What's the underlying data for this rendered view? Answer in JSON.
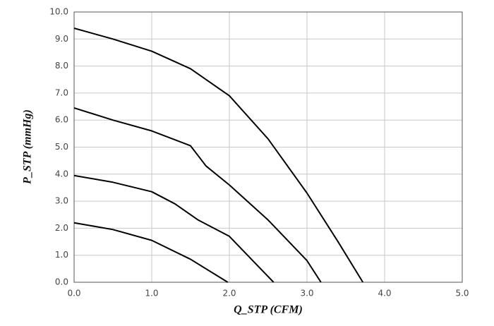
{
  "chart_data": {
    "type": "line",
    "xlabel": "Q_STP (CFM)",
    "ylabel": "P_STP (mmHg)",
    "xlim": [
      0,
      5
    ],
    "ylim": [
      0,
      10
    ],
    "xticks": [
      {
        "value": 0,
        "label": "0.0"
      },
      {
        "value": 1,
        "label": "1.0"
      },
      {
        "value": 2,
        "label": "2.0"
      },
      {
        "value": 3,
        "label": "3.0"
      },
      {
        "value": 4,
        "label": "4.0"
      },
      {
        "value": 5,
        "label": "5.0"
      }
    ],
    "yticks": [
      {
        "value": 0,
        "label": "0.0"
      },
      {
        "value": 1,
        "label": "1.0"
      },
      {
        "value": 2,
        "label": "2.0"
      },
      {
        "value": 3,
        "label": "3.0"
      },
      {
        "value": 4,
        "label": "4.0"
      },
      {
        "value": 5,
        "label": "5.0"
      },
      {
        "value": 6,
        "label": "6.0"
      },
      {
        "value": 7,
        "label": "7.0"
      },
      {
        "value": 8,
        "label": "8.0"
      },
      {
        "value": 9,
        "label": "9.0"
      },
      {
        "value": 10,
        "label": "10.0"
      }
    ],
    "grid": true,
    "series": [
      {
        "color": "#000000",
        "x": [
          0,
          0.5,
          1.0,
          1.5,
          2.0,
          2.5,
          3.0,
          3.4,
          3.72
        ],
        "values": [
          9.4,
          9.0,
          8.55,
          7.9,
          6.9,
          5.3,
          3.3,
          1.5,
          0
        ]
      },
      {
        "color": "#000000",
        "x": [
          0,
          0.5,
          1.0,
          1.5,
          1.7,
          2.0,
          2.5,
          3.0,
          3.18
        ],
        "values": [
          6.45,
          6.0,
          5.6,
          5.05,
          4.3,
          3.6,
          2.3,
          0.8,
          0
        ]
      },
      {
        "color": "#000000",
        "x": [
          0,
          0.5,
          1.0,
          1.3,
          1.6,
          2.0,
          2.2,
          2.57
        ],
        "values": [
          3.95,
          3.7,
          3.35,
          2.9,
          2.3,
          1.7,
          1.1,
          0
        ]
      },
      {
        "color": "#000000",
        "x": [
          0,
          0.5,
          1.0,
          1.5,
          1.98
        ],
        "values": [
          2.2,
          1.95,
          1.55,
          0.85,
          0
        ]
      }
    ]
  }
}
